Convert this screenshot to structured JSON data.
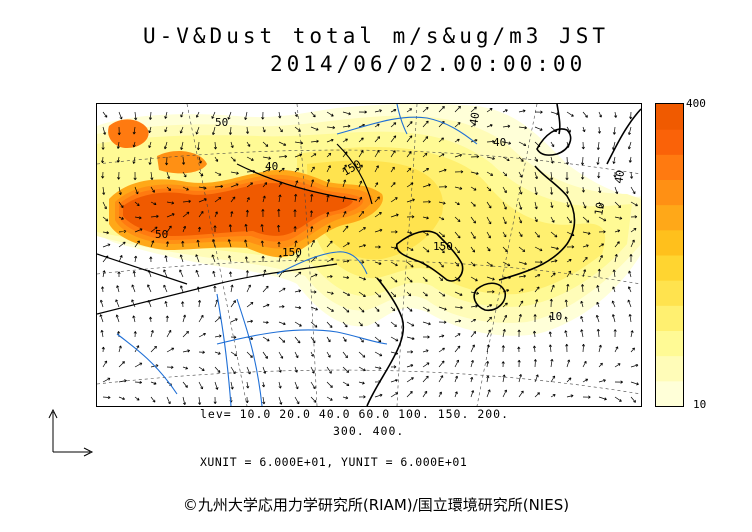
{
  "header": {
    "title": "U-V&Dust total m/s&ug/m3 JST",
    "datetime": "2014/06/02.00:00:00"
  },
  "colorbar": {
    "max_label": "400",
    "min_label": "10",
    "colors": [
      "#ffffd8",
      "#fffcb8",
      "#fffa95",
      "#fff070",
      "#ffe34e",
      "#ffd530",
      "#ffc01c",
      "#ffa818",
      "#ff9014",
      "#ff7a10",
      "#fa6208",
      "#f05a00"
    ]
  },
  "contour_labels": [
    "40",
    "150",
    "50",
    "150",
    "150",
    "10",
    "40",
    "40",
    "50",
    "10",
    "40"
  ],
  "legend": {
    "levels_line1": "lev= 10.0 20.0 40.0 60.0 100. 150. 200.",
    "levels_line2": "300. 400.",
    "units": "XUNIT = 6.000E+01, YUNIT = 6.000E+01"
  },
  "credit": "©九州大学応用力学研究所(RIAM)/国立環境研究所(NIES)",
  "colors": {
    "coast": "#000000",
    "rivers": "#1f6fd6",
    "boundaries": "#555555"
  }
}
